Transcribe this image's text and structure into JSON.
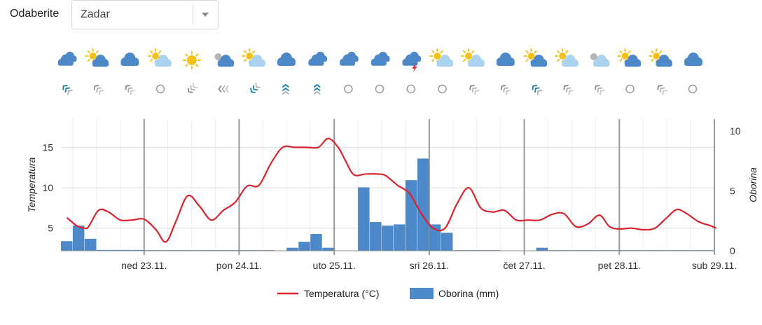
{
  "header": {
    "select_label": "Odaberite",
    "location_select": {
      "value": "Zadar"
    }
  },
  "forecast": {
    "weather_icons": [
      "cloud-rain-icon",
      "sun-cloud-icon",
      "cloud-icon",
      "sun-cloud-light-icon",
      "sun-icon",
      "moon-cloud-icon",
      "sun-cloud-light-icon",
      "cloud-icon",
      "cloud-rain-icon",
      "cloud-rain-icon",
      "cloud-rain-icon",
      "cloud-thunder-icon",
      "sun-cloud-light-icon",
      "sun-cloud-light-icon",
      "cloud-icon",
      "sun-cloud-icon",
      "sun-cloud-light-icon",
      "moon-cloud-light-icon",
      "sun-cloud-icon",
      "sun-cloud-icon",
      "cloud-icon"
    ],
    "wind_icons": [
      "wind-sw-strong-icon",
      "wind-sw-light-icon",
      "wind-sw-light-icon",
      "wind-calm-icon",
      "wind-se-light-icon",
      "wind-w-light-icon",
      "wind-nw-strong-icon",
      "wind-n-strong-icon",
      "wind-n-strong-icon",
      "wind-calm-icon",
      "wind-calm-icon",
      "wind-calm-icon",
      "wind-calm-icon",
      "wind-sw-light-icon",
      "wind-sw-light-icon",
      "wind-sw-strong-icon",
      "wind-sw-light-icon",
      "wind-sw-light-icon",
      "wind-calm-icon",
      "wind-sw-light-icon",
      "wind-calm-icon"
    ]
  },
  "colors": {
    "temperature": "#d9232e",
    "precipitation": "#4d88c9",
    "grid": "#dddddd",
    "day_line": "#999999"
  },
  "chart_data": {
    "type": "line-bar-combo",
    "x_unit": "hours",
    "x_range": [
      0,
      165
    ],
    "day_ticks": [
      {
        "x": 21,
        "label": "ned 23.11."
      },
      {
        "x": 45,
        "label": "pon 24.11."
      },
      {
        "x": 69,
        "label": "uto 25.11."
      },
      {
        "x": 93,
        "label": "sri 26.11."
      },
      {
        "x": 117,
        "label": "čet 27.11."
      },
      {
        "x": 141,
        "label": "pet 28.11."
      },
      {
        "x": 165,
        "label": "sub 29.11."
      }
    ],
    "y_left": {
      "title": "Temperatura",
      "ticks": [
        5,
        10,
        15
      ],
      "range": [
        2.2,
        18.5
      ]
    },
    "y_right": {
      "title": "Oborina",
      "ticks": [
        0,
        5,
        10
      ],
      "range": [
        0,
        11
      ]
    },
    "legend": {
      "position": "bottom-center"
    },
    "series": [
      {
        "name": "Temperatura (°C)",
        "type": "line",
        "axis": "left",
        "points": [
          [
            1.5,
            6.3
          ],
          [
            4,
            5.3
          ],
          [
            6,
            5.0
          ],
          [
            7,
            5.2
          ],
          [
            9.5,
            7.2
          ],
          [
            12,
            7.0
          ],
          [
            15,
            6.0
          ],
          [
            18,
            6.0
          ],
          [
            21,
            6.1
          ],
          [
            24,
            4.8
          ],
          [
            26.5,
            3.3
          ],
          [
            29,
            5.8
          ],
          [
            32,
            9.0
          ],
          [
            35,
            7.7
          ],
          [
            38,
            6.0
          ],
          [
            41,
            7.2
          ],
          [
            44,
            8.2
          ],
          [
            47,
            10.2
          ],
          [
            50,
            10.3
          ],
          [
            53,
            13.0
          ],
          [
            56,
            15.0
          ],
          [
            59,
            15.0
          ],
          [
            62,
            15.0
          ],
          [
            65,
            15.0
          ],
          [
            67.5,
            16.1
          ],
          [
            70,
            15.0
          ],
          [
            72,
            13.2
          ],
          [
            74,
            11.6
          ],
          [
            77,
            11.7
          ],
          [
            80,
            11.7
          ],
          [
            82,
            11.5
          ],
          [
            85,
            10.3
          ],
          [
            88,
            9.3
          ],
          [
            91,
            6.8
          ],
          [
            94,
            5.0
          ],
          [
            97,
            5.0
          ],
          [
            100,
            8.0
          ],
          [
            103,
            10.0
          ],
          [
            106,
            7.5
          ],
          [
            109,
            7.0
          ],
          [
            112,
            7.2
          ],
          [
            115,
            6.0
          ],
          [
            118,
            6.0
          ],
          [
            121,
            6.0
          ],
          [
            124,
            6.7
          ],
          [
            127,
            6.8
          ],
          [
            130,
            5.2
          ],
          [
            133,
            5.5
          ],
          [
            136,
            6.6
          ],
          [
            138.5,
            5.2
          ],
          [
            141,
            4.9
          ],
          [
            144,
            5.0
          ],
          [
            147,
            4.8
          ],
          [
            150,
            5.0
          ],
          [
            153,
            6.3
          ],
          [
            155.5,
            7.3
          ],
          [
            158,
            6.8
          ],
          [
            161,
            5.8
          ],
          [
            164,
            5.3
          ],
          [
            165.5,
            5.0
          ]
        ]
      },
      {
        "name": "Oborina (mm)",
        "type": "bar",
        "axis": "right",
        "bar_width": 3,
        "points": [
          [
            1.5,
            0.8
          ],
          [
            4.5,
            2.1
          ],
          [
            7.5,
            1.0
          ],
          [
            10.5,
            0.07
          ],
          [
            13.5,
            0.07
          ],
          [
            16.5,
            0.07
          ],
          [
            19.5,
            0.07
          ],
          [
            22.5,
            0.05
          ],
          [
            25.5,
            0.05
          ],
          [
            28.5,
            0.05
          ],
          [
            31.5,
            0.05
          ],
          [
            34.5,
            0.05
          ],
          [
            37.5,
            0.05
          ],
          [
            40.5,
            0.05
          ],
          [
            43.5,
            0.05
          ],
          [
            46.5,
            0.05
          ],
          [
            49.5,
            0.05
          ],
          [
            52.5,
            0.05
          ],
          [
            58.5,
            0.25
          ],
          [
            61.5,
            0.75
          ],
          [
            64.5,
            1.4
          ],
          [
            67.5,
            0.25
          ],
          [
            76.5,
            5.3
          ],
          [
            79.5,
            2.4
          ],
          [
            82.5,
            2.1
          ],
          [
            85.5,
            2.2
          ],
          [
            88.5,
            5.9
          ],
          [
            91.5,
            7.7
          ],
          [
            94.5,
            2.2
          ],
          [
            97.5,
            1.5
          ],
          [
            100.5,
            0.05
          ],
          [
            103.5,
            0.05
          ],
          [
            106.5,
            0.05
          ],
          [
            109.5,
            0.05
          ],
          [
            121.5,
            0.25
          ],
          [
            124.5,
            0.05
          ],
          [
            127.5,
            0.05
          ],
          [
            130.5,
            0.05
          ],
          [
            133.5,
            0.05
          ],
          [
            136.5,
            0.05
          ],
          [
            139.5,
            0.05
          ],
          [
            142.5,
            0.05
          ],
          [
            145.5,
            0.05
          ],
          [
            148.5,
            0.05
          ],
          [
            151.5,
            0.05
          ],
          [
            154.5,
            0.05
          ],
          [
            157.5,
            0.05
          ],
          [
            160.5,
            0.05
          ],
          [
            163.5,
            0.05
          ]
        ]
      }
    ]
  }
}
